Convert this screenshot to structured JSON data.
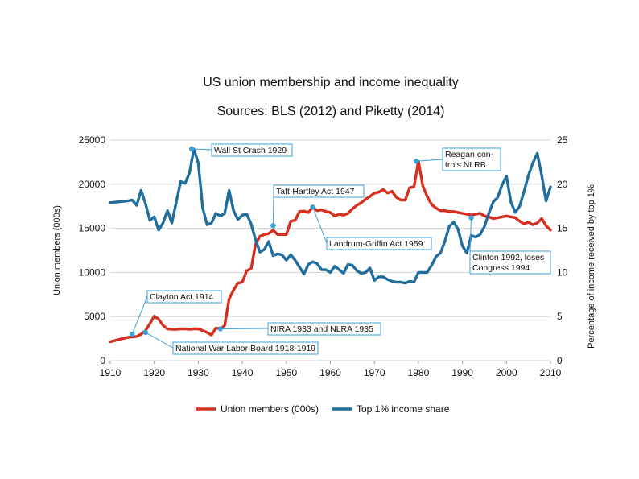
{
  "chart_data": {
    "type": "line",
    "title": "US union membership and income inequality",
    "subtitle": "Sources: BLS (2012) and Piketty (2014)",
    "xlabel": "",
    "ylabel": "Union members (000s)",
    "y2label": "Percentage of income received by top 1%",
    "xlim": [
      1910,
      2010
    ],
    "ylim": [
      0,
      25000
    ],
    "y2lim": [
      0,
      25
    ],
    "x_ticks": [
      "1910",
      "1920",
      "1930",
      "1940",
      "1950",
      "1960",
      "1970",
      "1980",
      "1990",
      "2000",
      "2010"
    ],
    "y_ticks": [
      "0",
      "5000",
      "10000",
      "15000",
      "20000",
      "25000"
    ],
    "y2_ticks": [
      "0",
      "5",
      "10",
      "15",
      "20",
      "25"
    ],
    "grid": "horizontal",
    "legend_position": "bottom",
    "colors": {
      "union": "#d62f1e",
      "top1": "#1f6e9e",
      "marker": "#3aa0d8",
      "grid": "#d4d4d4"
    },
    "series": [
      {
        "name": "Union members (000s)",
        "axis": "left",
        "x": [
          1910,
          1912,
          1914,
          1916,
          1917,
          1918,
          1919,
          1920,
          1921,
          1922,
          1923,
          1924,
          1925,
          1926,
          1927,
          1928,
          1929,
          1930,
          1931,
          1932,
          1933,
          1934,
          1935,
          1936,
          1937,
          1938,
          1939,
          1940,
          1941,
          1942,
          1943,
          1944,
          1945,
          1946,
          1947,
          1948,
          1949,
          1950,
          1951,
          1952,
          1953,
          1954,
          1955,
          1956,
          1957,
          1958,
          1959,
          1960,
          1961,
          1962,
          1963,
          1964,
          1965,
          1966,
          1967,
          1968,
          1969,
          1970,
          1971,
          1972,
          1973,
          1974,
          1975,
          1976,
          1977,
          1978,
          1979,
          1980,
          1981,
          1982,
          1983,
          1984,
          1985,
          1986,
          1987,
          1988,
          1989,
          1990,
          1991,
          1992,
          1993,
          1994,
          1995,
          1996,
          1997,
          1998,
          1999,
          2000,
          2001,
          2002,
          2003,
          2004,
          2005,
          2006,
          2007,
          2008,
          2009,
          2010
        ],
        "values": [
          2140,
          2400,
          2650,
          2750,
          3000,
          3400,
          4200,
          5050,
          4700,
          4000,
          3600,
          3550,
          3550,
          3600,
          3600,
          3550,
          3600,
          3600,
          3400,
          3200,
          2900,
          3700,
          3600,
          4000,
          7000,
          8000,
          8800,
          8900,
          10200,
          10400,
          13200,
          14100,
          14300,
          14400,
          14800,
          14300,
          14300,
          14300,
          15800,
          15900,
          16900,
          16950,
          16800,
          17400,
          17000,
          17100,
          16900,
          16800,
          16400,
          16600,
          16500,
          16700,
          17200,
          17600,
          17900,
          18300,
          18600,
          19000,
          19100,
          19400,
          19000,
          19200,
          18500,
          18200,
          18200,
          19600,
          19700,
          22600,
          19800,
          18600,
          17700,
          17300,
          17000,
          17000,
          16900,
          16900,
          16800,
          16700,
          16600,
          16500,
          16600,
          16700,
          16400,
          16300,
          16100,
          16200,
          16300,
          16400,
          16300,
          16200,
          15800,
          15500,
          15700,
          15400,
          15600,
          16100,
          15300,
          14800
        ]
      },
      {
        "name": "Top 1% income share",
        "axis": "right",
        "x": [
          1910,
          1912,
          1914,
          1915,
          1916,
          1917,
          1918,
          1919,
          1920,
          1921,
          1922,
          1923,
          1924,
          1925,
          1926,
          1927,
          1928,
          1929,
          1930,
          1931,
          1932,
          1933,
          1934,
          1935,
          1936,
          1937,
          1938,
          1939,
          1940,
          1941,
          1942,
          1943,
          1944,
          1945,
          1946,
          1947,
          1948,
          1949,
          1950,
          1951,
          1952,
          1953,
          1954,
          1955,
          1956,
          1957,
          1958,
          1959,
          1960,
          1961,
          1962,
          1963,
          1964,
          1965,
          1966,
          1967,
          1968,
          1969,
          1970,
          1971,
          1972,
          1973,
          1974,
          1975,
          1976,
          1977,
          1978,
          1979,
          1980,
          1981,
          1982,
          1983,
          1984,
          1985,
          1986,
          1987,
          1988,
          1989,
          1990,
          1991,
          1992,
          1993,
          1994,
          1995,
          1996,
          1997,
          1998,
          1999,
          2000,
          2001,
          2002,
          2003,
          2004,
          2005,
          2006,
          2007,
          2008,
          2009,
          2010
        ],
        "values": [
          17.9,
          18.0,
          18.1,
          18.2,
          17.6,
          19.3,
          17.8,
          15.9,
          16.3,
          14.8,
          15.6,
          17.0,
          15.6,
          18.0,
          20.3,
          20.1,
          21.3,
          24.0,
          22.4,
          17.3,
          15.4,
          15.6,
          16.7,
          16.4,
          16.7,
          19.3,
          17.0,
          16.0,
          16.5,
          16.6,
          15.5,
          13.7,
          12.3,
          12.6,
          13.5,
          11.9,
          12.1,
          12.0,
          11.4,
          12.0,
          11.4,
          10.6,
          9.8,
          10.9,
          11.2,
          11.0,
          10.3,
          10.3,
          10.0,
          10.7,
          10.3,
          9.9,
          10.9,
          10.8,
          10.2,
          9.9,
          10.0,
          10.5,
          9.1,
          9.5,
          9.5,
          9.2,
          9.0,
          8.9,
          8.9,
          8.8,
          9.0,
          8.9,
          10.0,
          10.0,
          10.0,
          10.8,
          11.8,
          12.2,
          13.5,
          15.2,
          15.7,
          14.9,
          13.0,
          12.2,
          14.2,
          14.0,
          14.3,
          15.2,
          16.7,
          18.0,
          18.5,
          19.9,
          20.9,
          18.0,
          16.8,
          17.5,
          19.2,
          21.0,
          22.4,
          23.5,
          21.0,
          18.1,
          19.7
        ]
      }
    ],
    "annotations": [
      {
        "label": [
          "Wall St Crash 1929"
        ],
        "x": 1928.5,
        "value": 24.0,
        "axis": "right"
      },
      {
        "label": [
          "Reagan con-",
          "trols NLRB"
        ],
        "x": 1979.5,
        "value": 22.6,
        "axis": "right"
      },
      {
        "label": [
          "Taft-Hartley Act 1947"
        ],
        "x": 1947,
        "value": 15.3,
        "axis": "right"
      },
      {
        "label": [
          "Landrum-Griffin Act 1959"
        ],
        "x": 1956,
        "value": 17.4,
        "axis": "right"
      },
      {
        "label": [
          "Clinton 1992, loses",
          "Congress 1994"
        ],
        "x": 1992,
        "value": 16.2,
        "axis": "right"
      },
      {
        "label": [
          "Clayton Act 1914"
        ],
        "x": 1915,
        "value": 3000,
        "axis": "left"
      },
      {
        "label": [
          "National War Labor Board 1918-1919"
        ],
        "x": 1918,
        "value": 3200,
        "axis": "left"
      },
      {
        "label": [
          "NIRA 1933 and NLRA 1935"
        ],
        "x": 1935,
        "value": 3600,
        "axis": "left"
      }
    ]
  }
}
